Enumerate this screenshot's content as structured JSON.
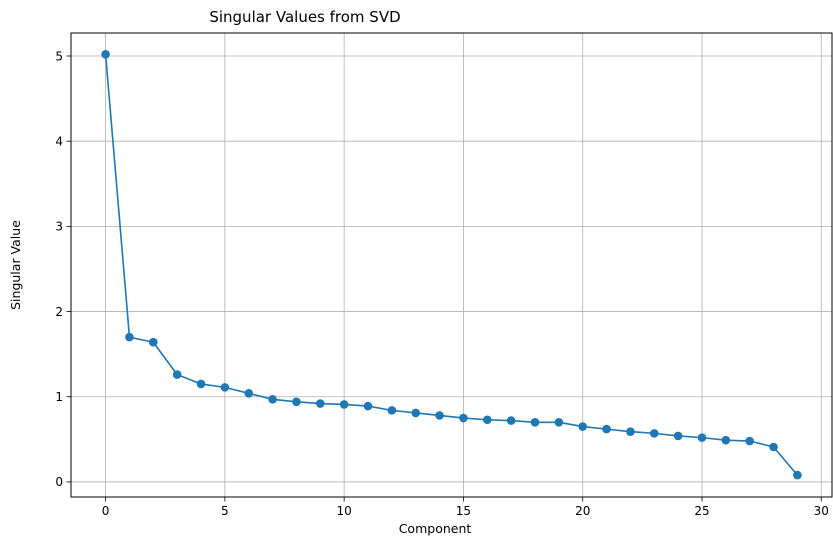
{
  "chart_data": {
    "type": "line",
    "title": "Singular Values from SVD",
    "xlabel": "Component",
    "ylabel": "Singular Value",
    "xlim": [
      -1.45,
      30.45
    ],
    "ylim": [
      -0.177,
      5.27
    ],
    "xticks": [
      0,
      5,
      10,
      15,
      20,
      25,
      30
    ],
    "yticks": [
      0,
      1,
      2,
      3,
      4,
      5
    ],
    "grid": true,
    "series": [
      {
        "color": "#1f77b4",
        "marker": "circle",
        "x": [
          0,
          1,
          2,
          3,
          4,
          5,
          6,
          7,
          8,
          9,
          10,
          11,
          12,
          13,
          14,
          15,
          16,
          17,
          18,
          19,
          20,
          21,
          22,
          23,
          24,
          25,
          26,
          27,
          28,
          29
        ],
        "y": [
          5.02,
          1.7,
          1.64,
          1.26,
          1.15,
          1.11,
          1.04,
          0.97,
          0.94,
          0.92,
          0.91,
          0.89,
          0.84,
          0.81,
          0.78,
          0.75,
          0.73,
          0.72,
          0.7,
          0.7,
          0.65,
          0.62,
          0.59,
          0.57,
          0.54,
          0.52,
          0.49,
          0.48,
          0.41,
          0.08
        ]
      }
    ]
  }
}
